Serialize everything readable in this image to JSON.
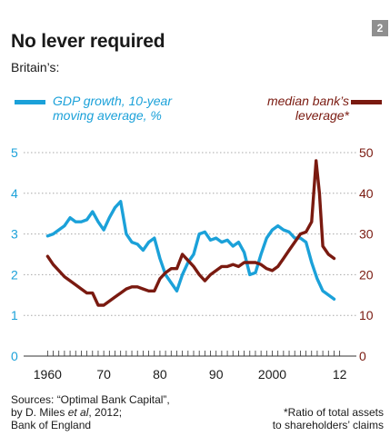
{
  "title": "No lever required",
  "subtitle": "Britain’s:",
  "badge": "2",
  "legend": {
    "left_line1": "GDP growth, 10-year",
    "left_line2": "moving average, %",
    "right_line1": "median bank’s",
    "right_line2": "leverage*"
  },
  "sources": {
    "line1": "Sources: “Optimal Bank Capital”,",
    "line2_pre": "by D. Miles ",
    "line2_em": "et al",
    "line2_post": ", 2012;",
    "line3": "Bank of England"
  },
  "footnote": {
    "line1": "*Ratio of total assets",
    "line2": "to shareholders’ claims"
  },
  "colors": {
    "gdp": "#1ba1d9",
    "leverage": "#7a1a10",
    "grid": "#a8a8a8",
    "axis": "#333333"
  },
  "chart_data": {
    "type": "line",
    "x_ticks": [
      1960,
      1970,
      1980,
      1990,
      2000,
      2012
    ],
    "x_tick_labels": [
      "1960",
      "70",
      "80",
      "90",
      "2000",
      "12"
    ],
    "xlim": [
      1958,
      2014
    ],
    "y_left_lim": [
      0,
      5
    ],
    "y_left_ticks": [
      0,
      1,
      2,
      3,
      4,
      5
    ],
    "y_right_lim": [
      0,
      50
    ],
    "y_right_ticks": [
      0,
      10,
      20,
      30,
      40,
      50
    ],
    "grid": "horizontal dotted",
    "series": [
      {
        "name": "GDP growth, 10-year moving average, %",
        "axis": "left",
        "color": "#1ba1d9",
        "points": [
          [
            1960,
            2.95
          ],
          [
            1961,
            3.0
          ],
          [
            1962,
            3.1
          ],
          [
            1963,
            3.2
          ],
          [
            1964,
            3.4
          ],
          [
            1965,
            3.3
          ],
          [
            1966,
            3.3
          ],
          [
            1967,
            3.35
          ],
          [
            1968,
            3.55
          ],
          [
            1969,
            3.3
          ],
          [
            1970,
            3.1
          ],
          [
            1971,
            3.4
          ],
          [
            1972,
            3.65
          ],
          [
            1973,
            3.8
          ],
          [
            1974,
            3.0
          ],
          [
            1975,
            2.8
          ],
          [
            1976,
            2.75
          ],
          [
            1977,
            2.6
          ],
          [
            1978,
            2.8
          ],
          [
            1979,
            2.9
          ],
          [
            1980,
            2.4
          ],
          [
            1981,
            2.0
          ],
          [
            1982,
            1.8
          ],
          [
            1983,
            1.6
          ],
          [
            1984,
            2.0
          ],
          [
            1985,
            2.3
          ],
          [
            1986,
            2.5
          ],
          [
            1987,
            3.0
          ],
          [
            1988,
            3.05
          ],
          [
            1989,
            2.85
          ],
          [
            1990,
            2.9
          ],
          [
            1991,
            2.8
          ],
          [
            1992,
            2.85
          ],
          [
            1993,
            2.7
          ],
          [
            1994,
            2.8
          ],
          [
            1995,
            2.55
          ],
          [
            1996,
            2.0
          ],
          [
            1997,
            2.05
          ],
          [
            1998,
            2.5
          ],
          [
            1999,
            2.9
          ],
          [
            2000,
            3.1
          ],
          [
            2001,
            3.2
          ],
          [
            2002,
            3.1
          ],
          [
            2003,
            3.05
          ],
          [
            2004,
            2.9
          ],
          [
            2005,
            2.9
          ],
          [
            2006,
            2.8
          ],
          [
            2007,
            2.3
          ],
          [
            2008,
            1.9
          ],
          [
            2009,
            1.6
          ],
          [
            2010,
            1.5
          ],
          [
            2011,
            1.4
          ]
        ]
      },
      {
        "name": "median bank’s leverage*",
        "axis": "right",
        "color": "#7a1a10",
        "points": [
          [
            1960,
            24.5
          ],
          [
            1961,
            22.5
          ],
          [
            1962,
            21
          ],
          [
            1963,
            19.5
          ],
          [
            1964,
            18.5
          ],
          [
            1965,
            17.5
          ],
          [
            1966,
            16.5
          ],
          [
            1967,
            15.5
          ],
          [
            1968,
            15.5
          ],
          [
            1969,
            12.5
          ],
          [
            1970,
            12.5
          ],
          [
            1971,
            13.5
          ],
          [
            1972,
            14.5
          ],
          [
            1973,
            15.5
          ],
          [
            1974,
            16.5
          ],
          [
            1975,
            17
          ],
          [
            1976,
            17
          ],
          [
            1977,
            16.5
          ],
          [
            1978,
            16
          ],
          [
            1979,
            16
          ],
          [
            1980,
            19
          ],
          [
            1981,
            20.5
          ],
          [
            1982,
            21.5
          ],
          [
            1983,
            21.5
          ],
          [
            1984,
            25
          ],
          [
            1985,
            23.5
          ],
          [
            1986,
            22
          ],
          [
            1987,
            20
          ],
          [
            1988,
            18.5
          ],
          [
            1989,
            20
          ],
          [
            1990,
            21
          ],
          [
            1991,
            22
          ],
          [
            1992,
            22
          ],
          [
            1993,
            22.5
          ],
          [
            1994,
            22
          ],
          [
            1995,
            23
          ],
          [
            1996,
            23
          ],
          [
            1997,
            23
          ],
          [
            1998,
            22.5
          ],
          [
            1999,
            21.5
          ],
          [
            2000,
            21
          ],
          [
            2001,
            22
          ],
          [
            2002,
            24
          ],
          [
            2003,
            26
          ],
          [
            2004,
            28
          ],
          [
            2005,
            30
          ],
          [
            2006,
            30.5
          ],
          [
            2007,
            33
          ],
          [
            2007.8,
            48
          ],
          [
            2008.4,
            40
          ],
          [
            2009,
            27
          ],
          [
            2010,
            25
          ],
          [
            2011,
            24
          ]
        ]
      }
    ]
  }
}
